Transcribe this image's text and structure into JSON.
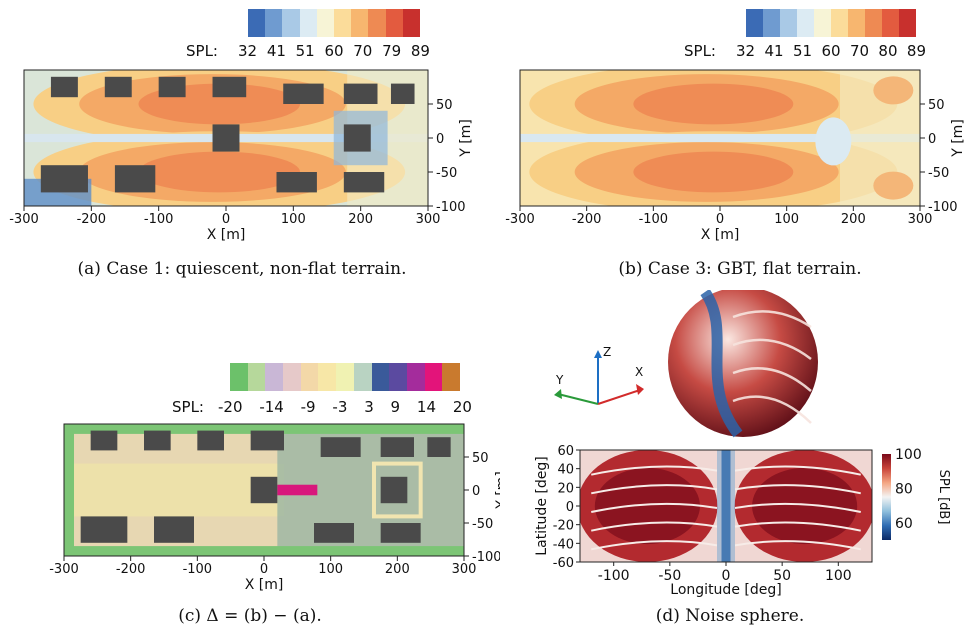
{
  "chart_data": [
    {
      "type": "heatmap",
      "panel": "a",
      "caption": "(a) Case 1: quiescent, non-flat terrain.",
      "colorbar_label": "SPL:",
      "colorbar_ticks": [
        "32",
        "41",
        "51",
        "60",
        "70",
        "79",
        "89"
      ],
      "colorbar_colors": [
        "#3b6bb5",
        "#6f9bd0",
        "#a9c9e6",
        "#dcebf3",
        "#f7f4d6",
        "#fbdc9a",
        "#f7b66f",
        "#ee8a53",
        "#e35b3f",
        "#c8302d"
      ],
      "xlabel": "X [m]",
      "ylabel": "Y [m]",
      "xlim": [
        -300,
        300
      ],
      "ylim": [
        -100,
        100
      ],
      "xticks": [
        "-300",
        "-200",
        "-100",
        "0",
        "100",
        "200",
        "300"
      ],
      "yticks": [
        "50",
        "0",
        "-50",
        "-100"
      ],
      "buildings": [
        {
          "x0": -260,
          "x1": -220,
          "y0": 60,
          "y1": 90
        },
        {
          "x0": -180,
          "x1": -140,
          "y0": 60,
          "y1": 90
        },
        {
          "x0": -100,
          "x1": -60,
          "y0": 60,
          "y1": 90
        },
        {
          "x0": -20,
          "x1": 30,
          "y0": 60,
          "y1": 90
        },
        {
          "x0": 85,
          "x1": 145,
          "y0": 50,
          "y1": 80
        },
        {
          "x0": 175,
          "x1": 225,
          "y0": 50,
          "y1": 80
        },
        {
          "x0": 245,
          "x1": 280,
          "y0": 50,
          "y1": 80
        },
        {
          "x0": -20,
          "x1": 20,
          "y0": -20,
          "y1": 20
        },
        {
          "x0": 175,
          "x1": 215,
          "y0": -20,
          "y1": 20
        },
        {
          "x0": -275,
          "x1": -205,
          "y0": -80,
          "y1": -40
        },
        {
          "x0": -165,
          "x1": -105,
          "y0": -80,
          "y1": -40
        },
        {
          "x0": 75,
          "x1": 135,
          "y0": -80,
          "y1": -50
        },
        {
          "x0": 175,
          "x1": 235,
          "y0": -80,
          "y1": -50
        }
      ]
    },
    {
      "type": "heatmap",
      "panel": "b",
      "caption": "(b) Case 3: GBT, flat terrain.",
      "colorbar_label": "SPL:",
      "colorbar_ticks": [
        "32",
        "41",
        "51",
        "60",
        "70",
        "80",
        "89"
      ],
      "colorbar_colors": [
        "#3b6bb5",
        "#6f9bd0",
        "#a9c9e6",
        "#dcebf3",
        "#f7f4d6",
        "#fbdc9a",
        "#f7b66f",
        "#ee8a53",
        "#e35b3f",
        "#c8302d"
      ],
      "xlabel": "X [m]",
      "ylabel": "Y [m]",
      "xlim": [
        -300,
        300
      ],
      "ylim": [
        -100,
        100
      ],
      "xticks": [
        "-300",
        "-200",
        "-100",
        "0",
        "100",
        "200",
        "300"
      ],
      "yticks": [
        "50",
        "0",
        "-50",
        "-100"
      ]
    },
    {
      "type": "heatmap",
      "panel": "c",
      "caption": "(c) Δ = (b) − (a).",
      "colorbar_label": "SPL:",
      "colorbar_ticks": [
        "-20",
        "-14",
        "-9",
        "-3",
        "3",
        "9",
        "14",
        "20"
      ],
      "colorbar_colors": [
        "#6cc16a",
        "#b6d89b",
        "#c9b7d6",
        "#e6c9c9",
        "#f3d8a8",
        "#f7e7a7",
        "#f0f2b2",
        "#b9d3c2",
        "#3a5a9a",
        "#5b4aa0",
        "#a42c9c",
        "#e3147a",
        "#c97a2e"
      ],
      "xlabel": "X [m]",
      "ylabel": "Y [m]",
      "xlim": [
        -300,
        300
      ],
      "ylim": [
        -100,
        100
      ],
      "xticks": [
        "-300",
        "-200",
        "-100",
        "0",
        "100",
        "200",
        "300"
      ],
      "yticks": [
        "50",
        "0",
        "-50",
        "-100"
      ],
      "buildings": [
        {
          "x0": -260,
          "x1": -220,
          "y0": 60,
          "y1": 90
        },
        {
          "x0": -180,
          "x1": -140,
          "y0": 60,
          "y1": 90
        },
        {
          "x0": -100,
          "x1": -60,
          "y0": 60,
          "y1": 90
        },
        {
          "x0": -20,
          "x1": 30,
          "y0": 60,
          "y1": 90
        },
        {
          "x0": 85,
          "x1": 145,
          "y0": 50,
          "y1": 80
        },
        {
          "x0": 175,
          "x1": 225,
          "y0": 50,
          "y1": 80
        },
        {
          "x0": 245,
          "x1": 280,
          "y0": 50,
          "y1": 80
        },
        {
          "x0": -20,
          "x1": 20,
          "y0": -20,
          "y1": 20
        },
        {
          "x0": 175,
          "x1": 215,
          "y0": -20,
          "y1": 20
        },
        {
          "x0": -275,
          "x1": -205,
          "y0": -80,
          "y1": -40
        },
        {
          "x0": -165,
          "x1": -105,
          "y0": -80,
          "y1": -40
        },
        {
          "x0": 75,
          "x1": 135,
          "y0": -80,
          "y1": -50
        },
        {
          "x0": 175,
          "x1": 235,
          "y0": -80,
          "y1": -50
        }
      ]
    },
    {
      "type": "heatmap",
      "panel": "d",
      "caption": "(d) Noise sphere.",
      "axes_triad": {
        "x": "X",
        "y": "Y",
        "z": "Z"
      },
      "xlabel": "Longitude [deg]",
      "ylabel": "Latitude [deg]",
      "xlim": [
        -130,
        130
      ],
      "ylim": [
        -60,
        60
      ],
      "xticks": [
        "-100",
        "-50",
        "0",
        "50",
        "100"
      ],
      "yticks": [
        "60",
        "40",
        "20",
        "0",
        "-20",
        "-40",
        "-60"
      ],
      "colorbar_title": "SPL [dB]",
      "colorbar_ticks": [
        "100",
        "80",
        "60"
      ],
      "colorbar_range": [
        50,
        100
      ],
      "colorbar_colors": [
        "#0c2a66",
        "#2f6cb3",
        "#8fbfdc",
        "#f3f3f3",
        "#f4a582",
        "#c8443a",
        "#7a0a1a"
      ]
    }
  ]
}
